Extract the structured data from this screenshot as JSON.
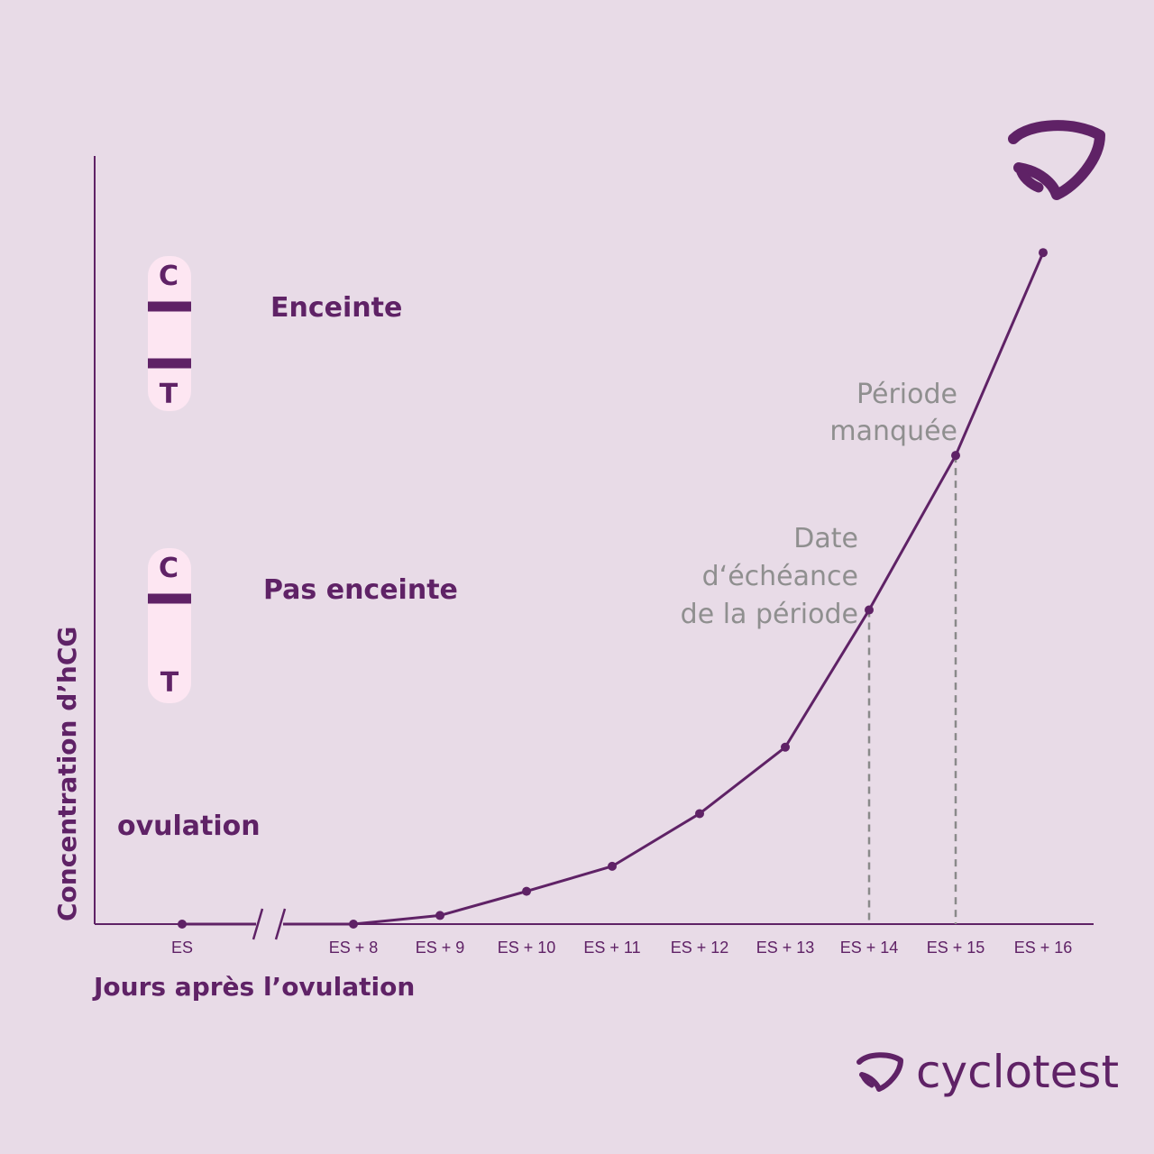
{
  "colors": {
    "background": "#e8dbe7",
    "brand": "#5f2266",
    "strip": "#fde6f2",
    "annotation": "#8f8f8f"
  },
  "chart_data": {
    "type": "line",
    "ylabel": "Concentration d’hCG",
    "xlabel": "Jours après l’ovulation",
    "categories": [
      "ES",
      "ES + 8",
      "ES + 9",
      "ES + 10",
      "ES + 11",
      "ES + 12",
      "ES + 13",
      "ES + 14",
      "ES + 15",
      "ES + 16"
    ],
    "values": [
      0,
      0,
      1,
      3.8,
      6.7,
      12.8,
      20.5,
      36.4,
      54.3,
      77.8
    ],
    "ylim": [
      0,
      89
    ],
    "axis_break_after_first": true,
    "y_ticks_shown": false,
    "grid": false,
    "legend": "none",
    "annotations": [
      {
        "category": "ES + 14",
        "lines": [
          "Date",
          "d‘échéance",
          "de la période"
        ],
        "dashed_drop": true
      },
      {
        "category": "ES + 15",
        "lines": [
          "Période",
          "manquée"
        ],
        "dashed_drop": true
      }
    ],
    "side_labels": {
      "ovulation": "ovulation",
      "pregnant": "Enceinte",
      "not_pregnant": "Pas enceinte"
    },
    "test_strips": {
      "control_letter": "C",
      "test_letter": "T",
      "pregnant_lines": [
        "C",
        "T"
      ],
      "not_pregnant_lines": [
        "C"
      ]
    }
  },
  "brand": {
    "name": "cyclotest",
    "logo_icon": "cyclotest-logo-icon"
  }
}
